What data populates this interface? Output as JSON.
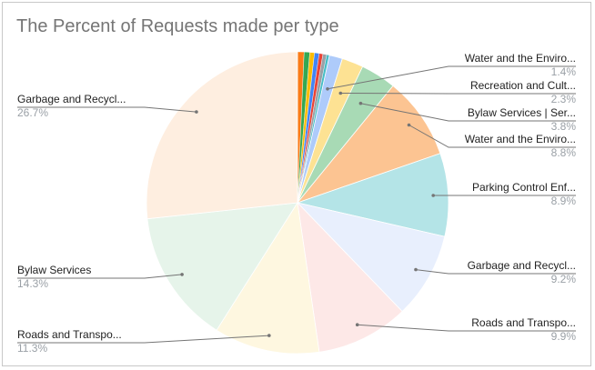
{
  "chart_data": {
    "type": "pie",
    "title": "The Percent of Requests made per type",
    "legend": "none",
    "slices": [
      {
        "label": "Water and the Enviro...",
        "value": 1.4,
        "pct_label": "1.4%",
        "color": "#aecbfa"
      },
      {
        "label": "Recreation and Cult...",
        "value": 2.3,
        "pct_label": "2.3%",
        "color": "#fde293"
      },
      {
        "label": "Bylaw Services | Ser...",
        "value": 3.8,
        "pct_label": "3.8%",
        "color": "#a8dab5"
      },
      {
        "label": "Water and the Enviro...",
        "value": 8.8,
        "pct_label": "8.8%",
        "color": "#fcc492"
      },
      {
        "label": "Parking Control Enf...",
        "value": 8.9,
        "pct_label": "8.9%",
        "color": "#b4e4e7"
      },
      {
        "label": "Garbage and Recycl...",
        "value": 9.2,
        "pct_label": "9.2%",
        "color": "#e8effd"
      },
      {
        "label": "Roads and Transpo...",
        "value": 9.9,
        "pct_label": "9.9%",
        "color": "#fde8e7"
      },
      {
        "label": "Roads and Transpo...",
        "value": 11.3,
        "pct_label": "11.3%",
        "color": "#fef7e0"
      },
      {
        "label": "Bylaw Services",
        "value": 14.3,
        "pct_label": "14.3%",
        "color": "#e6f4ea"
      },
      {
        "label": "Garbage and Recycl...",
        "value": 26.7,
        "pct_label": "26.7%",
        "color": "#feeee0"
      }
    ],
    "small_slices": [
      {
        "value": 0.7,
        "color": "#fa7b17"
      },
      {
        "value": 0.6,
        "color": "#34a853"
      },
      {
        "value": 0.5,
        "color": "#fbbc04"
      },
      {
        "value": 0.5,
        "color": "#4285f4"
      },
      {
        "value": 0.4,
        "color": "#ea4335"
      },
      {
        "value": 0.4,
        "color": "#9aa0a6"
      },
      {
        "value": 0.3,
        "color": "#46bdc6"
      }
    ],
    "label_color": "#222222",
    "pct_color": "#9aa0a6",
    "leader_color": "#757575"
  }
}
